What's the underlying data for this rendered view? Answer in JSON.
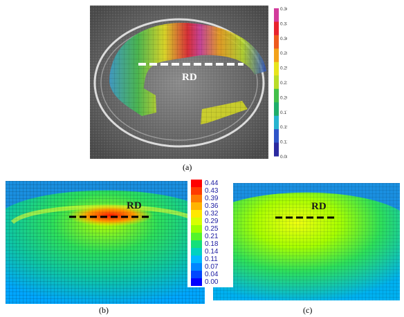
{
  "panel_a": {
    "caption": "(a)",
    "label": "RD",
    "colorbar_ticks": [
      "0.362",
      "0.335",
      "0.309",
      "0.283",
      "0.256",
      "0.230",
      "0.203",
      "0.177",
      "0.151",
      "0.124",
      "0.085"
    ],
    "colorbar_colors": [
      "#d23c9c",
      "#e8232e",
      "#ee5a1e",
      "#f3a21b",
      "#e8e41c",
      "#b9dd28",
      "#43c04a",
      "#1fae6a",
      "#27b4cf",
      "#2f55c8",
      "#2b2aa0"
    ]
  },
  "panel_b": {
    "caption": "(b)",
    "label": "RD"
  },
  "panel_c": {
    "caption": "(c)",
    "label": "RD"
  },
  "legend_bc": {
    "values": [
      "0.44",
      "0.43",
      "0.39",
      "0.36",
      "0.32",
      "0.29",
      "0.25",
      "0.21",
      "0.18",
      "0.14",
      "0.11",
      "0.07",
      "0.04",
      "0.00"
    ],
    "colors": [
      "#ff0000",
      "#ff3a00",
      "#ff7a00",
      "#ffb400",
      "#ffe800",
      "#d7ff00",
      "#9bff00",
      "#52f52a",
      "#14e07a",
      "#00d2c0",
      "#00b8ff",
      "#0086ff",
      "#0046ff",
      "#0000ff"
    ]
  }
}
